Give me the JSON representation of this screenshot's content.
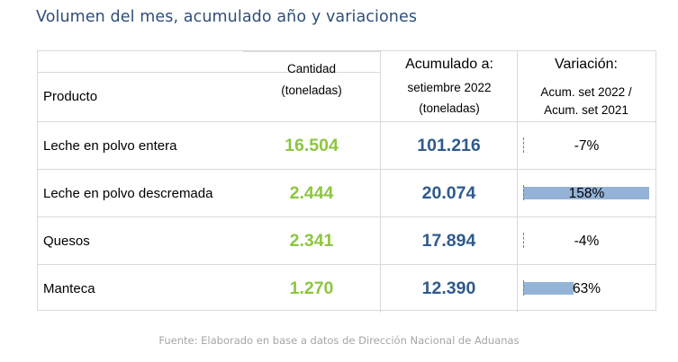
{
  "title": "Volumen del mes, acumulado año y variaciones",
  "header": {
    "product": "Producto",
    "quantity_line1": "Cantidad",
    "quantity_line2": "(toneladas)",
    "acum_line1": "Acumulado a:",
    "acum_line2": "setiembre 2022",
    "acum_line3": "(toneladas)",
    "var_line1": "Variación:",
    "var_line2": "Acum. set 2022 /",
    "var_line3": "Acum. set 2021"
  },
  "rows": [
    {
      "product": "Leche en polvo entera",
      "quantity": "16.504",
      "acumulado": "101.216",
      "variation": "-7%",
      "variation_value": -7
    },
    {
      "product": "Leche en polvo descremada",
      "quantity": "2.444",
      "acumulado": "20.074",
      "variation": "158%",
      "variation_value": 158
    },
    {
      "product": "Quesos",
      "quantity": "2.341",
      "acumulado": "17.894",
      "variation": "-4%",
      "variation_value": -4
    },
    {
      "product": "Manteca",
      "quantity": "1.270",
      "acumulado": "12.390",
      "variation": "63%",
      "variation_value": 63
    }
  ],
  "colors": {
    "quantity": "#8dc63f",
    "acumulado": "#2f5a8c",
    "variation_bar": "#95b3d7",
    "title": "#2f4f7a"
  },
  "source": "Fuente: Elaborado en base a datos de Dirección Nacional de Aduanas"
}
